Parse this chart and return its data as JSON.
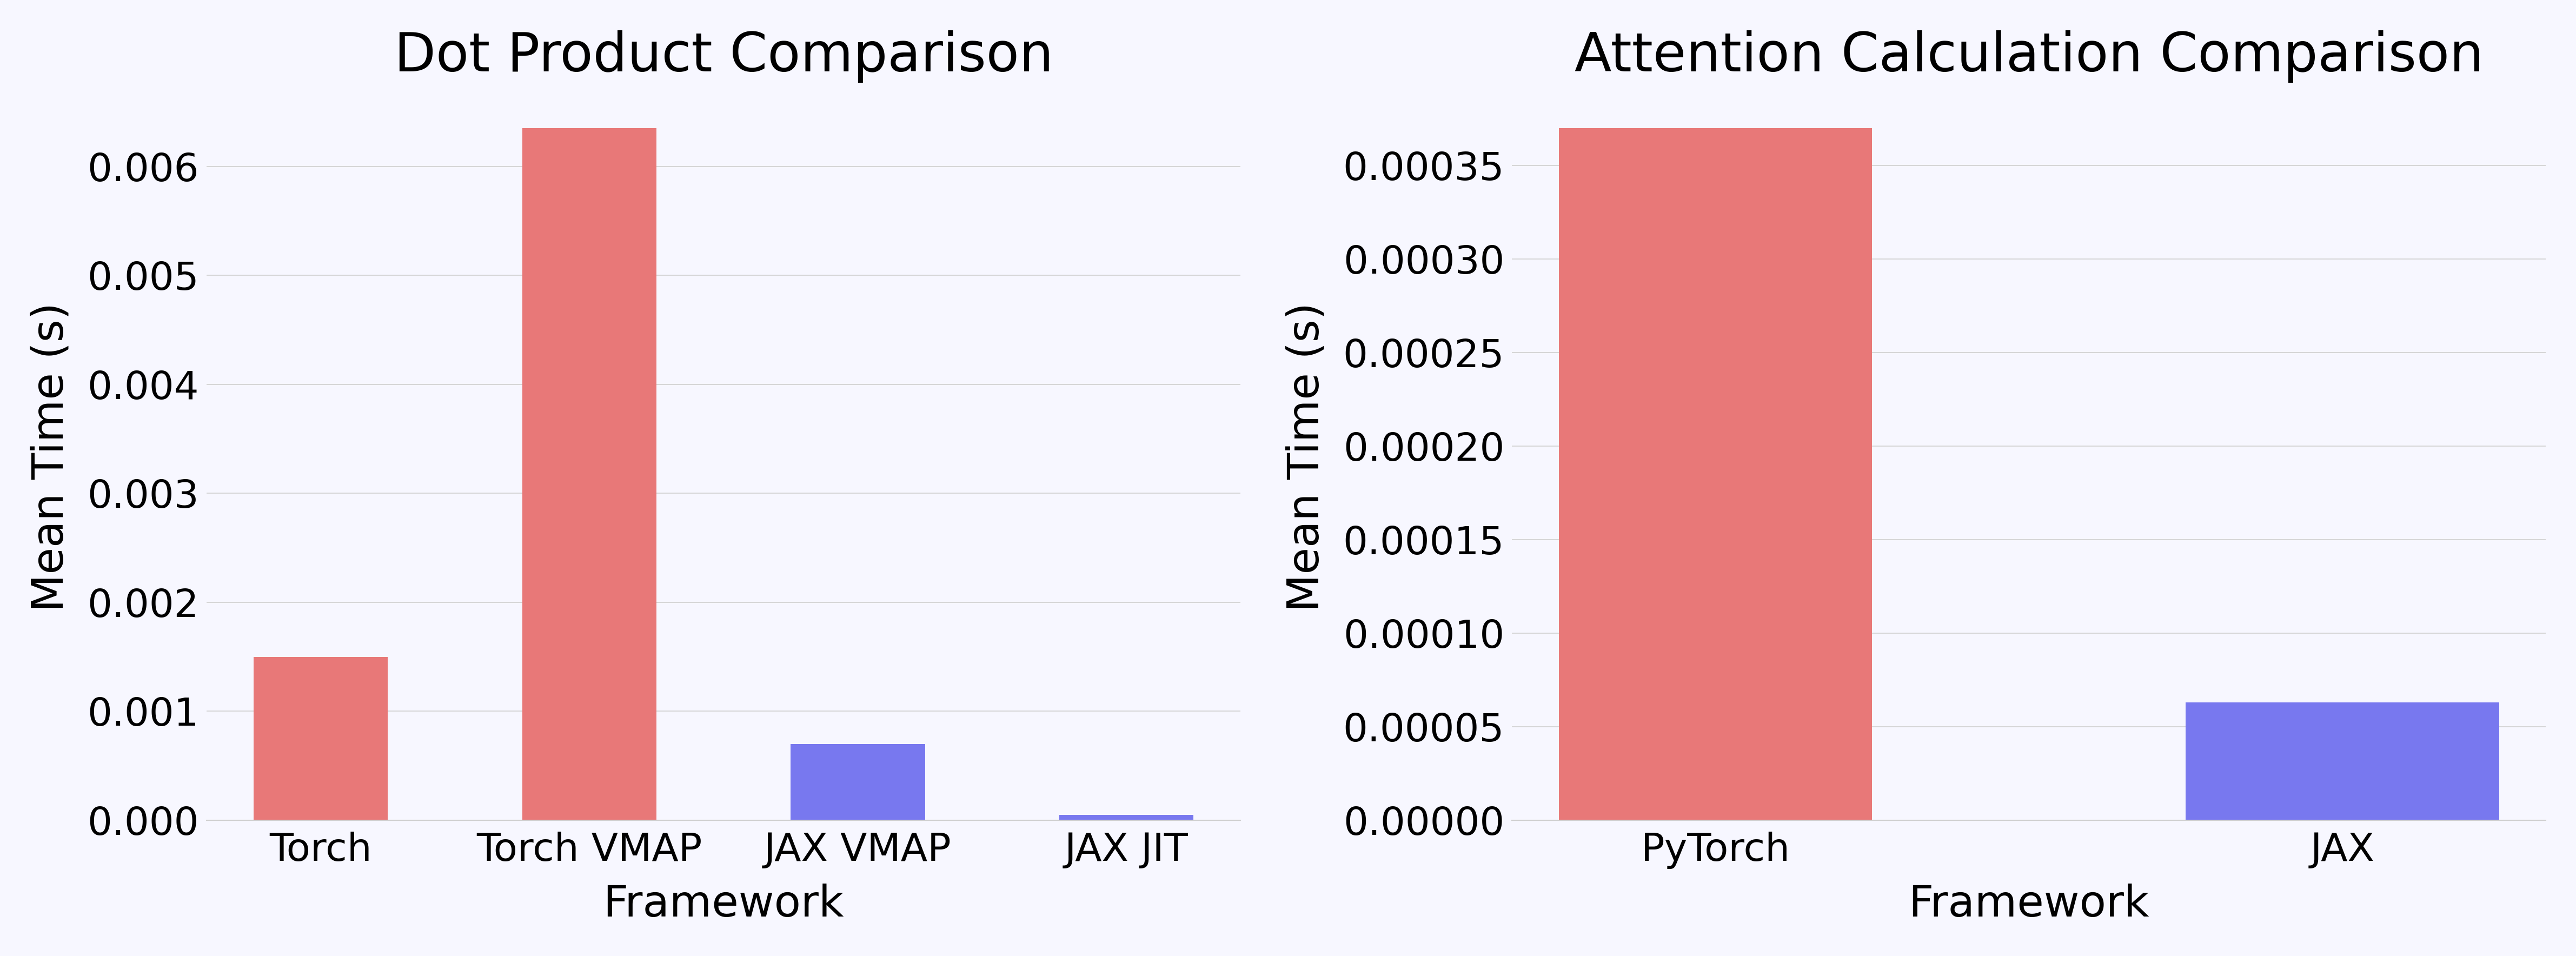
{
  "chart1": {
    "title": "Dot Product Comparison",
    "categories": [
      "Torch",
      "Torch VMAP",
      "JAX VMAP",
      "JAX JIT"
    ],
    "values": [
      0.0015,
      0.00635,
      0.0007,
      5e-05
    ],
    "colors": [
      "#e87878",
      "#e87878",
      "#7878ef",
      "#7878ef"
    ],
    "xlabel": "Framework",
    "ylabel": "Mean Time (s)"
  },
  "chart2": {
    "title": "Attention Calculation Comparison",
    "categories": [
      "PyTorch",
      "JAX"
    ],
    "values": [
      0.00037,
      6.3e-05
    ],
    "colors": [
      "#e87878",
      "#7878ef"
    ],
    "xlabel": "Framework",
    "ylabel": "Mean Time (s)"
  },
  "background_color": "#f7f7ff",
  "title_fontsize": 72,
  "label_fontsize": 58,
  "tick_fontsize": 52,
  "bar_width": 0.5
}
